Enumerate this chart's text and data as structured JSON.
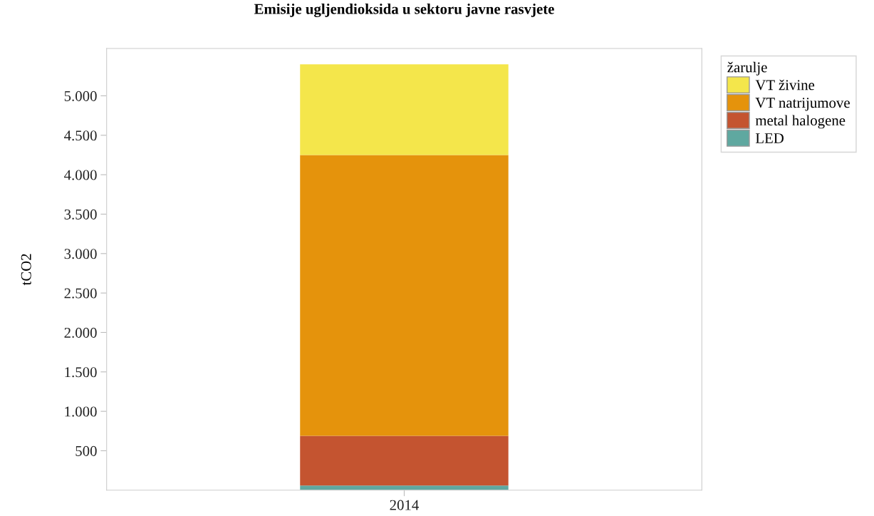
{
  "chart_data": {
    "type": "bar",
    "title": "Emisije ugljendioksida u sektoru javne rasvjete",
    "ylabel": "tCO2",
    "legend_title": "žarulje",
    "categories": [
      "2014"
    ],
    "stacked": true,
    "series": [
      {
        "name": "LED",
        "color": "#5fa8a0",
        "values": [
          60
        ]
      },
      {
        "name": "metal halogene",
        "color": "#c45430",
        "values": [
          630
        ]
      },
      {
        "name": "VT natrijumove",
        "color": "#e5930c",
        "values": [
          3560
        ]
      },
      {
        "name": "VT živine",
        "color": "#f4e64b",
        "values": [
          1150
        ]
      }
    ],
    "ylim": [
      0,
      5600
    ],
    "yticks": [
      {
        "value": 500,
        "label": "500"
      },
      {
        "value": 1000,
        "label": "1.000"
      },
      {
        "value": 1500,
        "label": "1.500"
      },
      {
        "value": 2000,
        "label": "2.000"
      },
      {
        "value": 2500,
        "label": "2.500"
      },
      {
        "value": 3000,
        "label": "3.000"
      },
      {
        "value": 3500,
        "label": "3.500"
      },
      {
        "value": 4000,
        "label": "4.000"
      },
      {
        "value": 4500,
        "label": "4.500"
      },
      {
        "value": 5000,
        "label": "5.000"
      }
    ],
    "grid": false,
    "legend": "top right"
  }
}
